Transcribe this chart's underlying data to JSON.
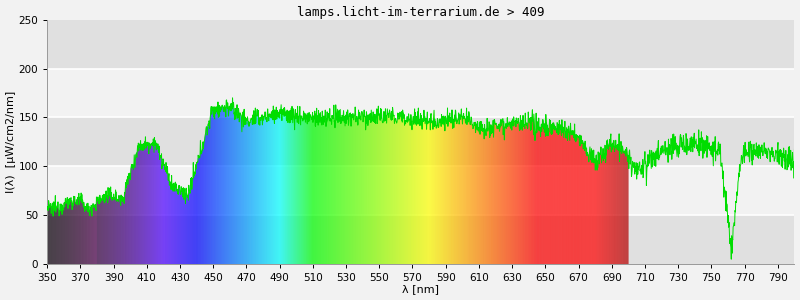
{
  "title": "lamps.licht-im-terrarium.de > 409",
  "xlabel": "λ [nm]",
  "ylabel": "I(λ)  [μW/cm2/nm]",
  "xlim": [
    350,
    800
  ],
  "ylim": [
    0,
    250
  ],
  "xticks": [
    350,
    370,
    390,
    410,
    430,
    450,
    470,
    490,
    510,
    530,
    550,
    570,
    590,
    610,
    630,
    650,
    670,
    690,
    710,
    730,
    750,
    770,
    790
  ],
  "yticks": [
    0,
    50,
    100,
    150,
    200,
    250
  ],
  "bg_color": "#f2f2f2",
  "band_dark": "#e0e0e0",
  "band_light": "#f2f2f2",
  "grid_color": "#ffffff",
  "line_color": "#00dd00",
  "visible_end": 700,
  "title_fontsize": 9,
  "axis_fontsize": 8,
  "tick_fontsize": 7.5
}
